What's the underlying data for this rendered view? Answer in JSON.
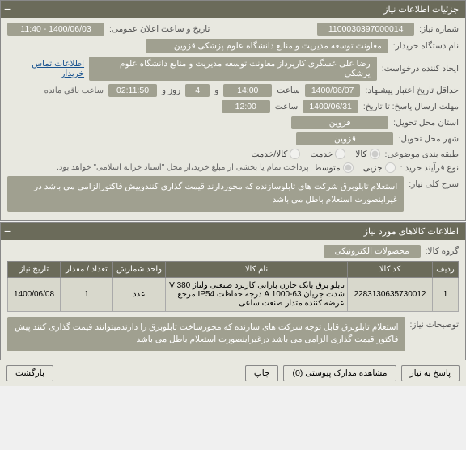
{
  "panels": {
    "info": {
      "title": "جزئیات اطلاعات نیاز"
    },
    "items": {
      "title": "اطلاعات کالاهای مورد نیاز"
    }
  },
  "fields": {
    "request_no_label": "شماره نیاز:",
    "request_no": "1100030397000014",
    "public_datetime_label": "تاریخ و ساعت اعلان عمومی:",
    "public_datetime": "1400/06/03 - 11:40",
    "buyer_org_label": "نام دستگاه خریدار:",
    "buyer_org": "معاونت توسعه مدیریت و منابع دانشگاه علوم پزشکی قزوین",
    "creator_label": "ایجاد کننده درخواست:",
    "creator": "رضا علی عسگری کارپرداز معاونت توسعه مدیریت و منابع دانشگاه علوم پزشکی",
    "contact_link": "اطلاعات تماس خریدار",
    "deadline_label": "حداقل تاریخ اعتبار پیشنهاد:",
    "deadline_date": "1400/06/07",
    "time_label": "ساعت",
    "deadline_time": "14:00",
    "days_and": "و",
    "days_count": "4",
    "days_unit": "روز و",
    "remaining_time": "02:11:50",
    "remaining_label": "ساعت باقی مانده",
    "price_until_label": "مهلت ارسال پاسخ: تا تاریخ:",
    "price_date": "1400/06/31",
    "price_time": "12:00",
    "province_label": "استان محل تحویل:",
    "province": "قزوین",
    "city_label": "شهر محل تحویل:",
    "city": "قزوین",
    "category_label": "طبقه بندی موضوعی:",
    "cat_goods": "کالا",
    "cat_service": "خدمت",
    "cat_both": "کالا/خدمت",
    "buy_type_label": "نوع فرآیند خرید :",
    "bt_low": "جزیی",
    "bt_mid": "متوسط",
    "payment_note": "پرداخت تمام یا بخشی از مبلغ خرید،از محل \"اسناد خزانه اسلامی\" خواهد بود.",
    "summary_label": "شرح کلی نیاز:",
    "summary": "استعلام تابلوبرق شرکت های تابلوسازنده که مجوزدارند قیمت گذاری کنندوپیش فاکتورالزامی می باشد در غیراینصورت استعلام باطل می باشد",
    "group_label": "گروه کالا:",
    "group": "محصولات الکترونیکی",
    "need_desc_label": "توضیحات نیاز:",
    "need_desc": "استعلام تابلوبرق قابل توجه شرکت های سازنده که مجوزساخت تابلوبرق را دارندمیتوانند قیمت گذاری کنند پیش فاکتور قیمت گذاری الزامی می باشد درغیراینصورت استعلام باطل می باشد"
  },
  "table": {
    "headers": {
      "row": "ردیف",
      "code": "کد کالا",
      "name": "نام کالا",
      "unit": "واحد شمارش",
      "qty": "تعداد / مقدار",
      "date": "تاریخ نیاز"
    },
    "rows": [
      {
        "row": "1",
        "code": "2283130635730012",
        "name": "تابلو برق بانک خازن بارانی کاربرد صنعتی ولتاژ 380 V شدت جریان 63-1000 A درجه حفاظت IP54 مرجع عرضه کننده مثدار صنعت ساعی",
        "unit": "عدد",
        "qty": "1",
        "date": "1400/06/08"
      }
    ]
  },
  "buttons": {
    "reply": "پاسخ به نیاز",
    "attachments": "مشاهده مدارک پیوستی (0)",
    "print": "چاپ",
    "back": "بازگشت"
  }
}
